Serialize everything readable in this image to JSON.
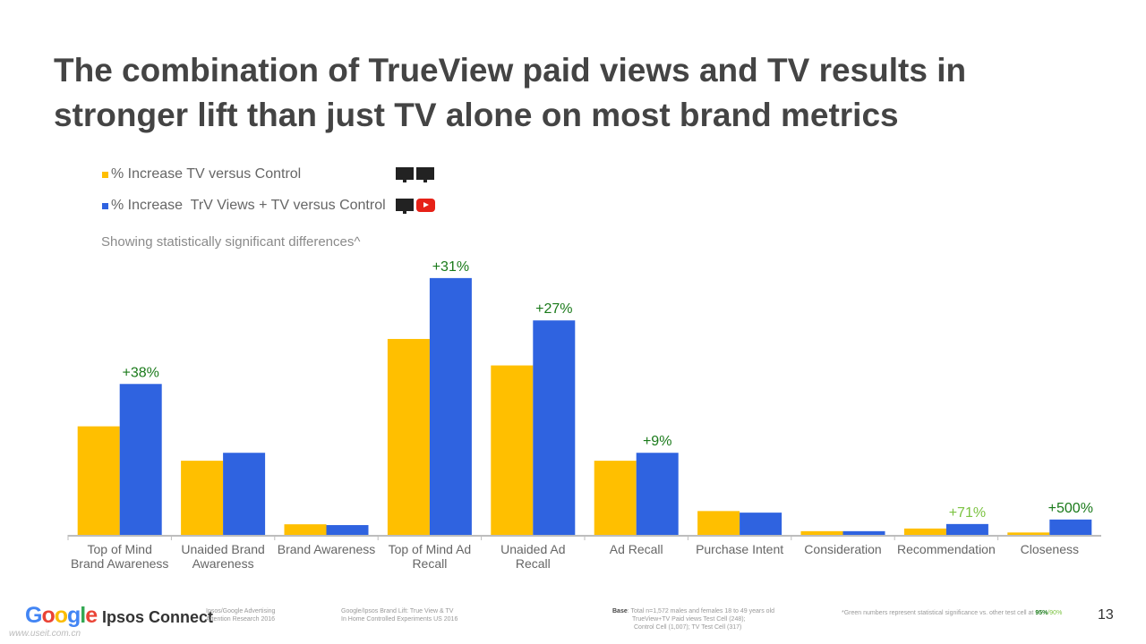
{
  "title": "The combination of TrueView paid views and TV results in stronger lift than just TV alone on most brand metrics",
  "subtitle": "Showing statistically significant differences^",
  "legend": {
    "tv_label": "% Increase TV versus Control",
    "trv_label": "% Increase  TrV Views + TV versus Control",
    "icons": [
      "tv-icon",
      "tv-icon",
      "tv-icon",
      "youtube-icon"
    ]
  },
  "colors": {
    "tv": "#FFBF00",
    "trv": "#2F63E0",
    "label_dark_green": "#1A7A1A",
    "label_light_green": "#7CC342"
  },
  "chart_data": {
    "type": "bar",
    "categories": [
      "Top of Mind Brand Awareness",
      "Unaided Brand Awareness",
      "Brand Awareness",
      "Top of Mind Ad Recall",
      "Unaided Ad Recall",
      "Ad Recall",
      "Purchase Intent",
      "Consideration",
      "Recommendation",
      "Closeness"
    ],
    "category_lines": [
      [
        "Top of Mind",
        "Brand Awareness"
      ],
      [
        "Unaided Brand",
        "Awareness"
      ],
      [
        "Brand Awareness"
      ],
      [
        "Top of Mind Ad",
        "Recall"
      ],
      [
        "Unaided Ad",
        "Recall"
      ],
      [
        "Ad Recall"
      ],
      [
        "Purchase Intent"
      ],
      [
        "Consideration"
      ],
      [
        "Recommendation"
      ],
      [
        "Closeness"
      ]
    ],
    "series": [
      {
        "name": "% Increase TV versus Control",
        "color": "#FFBF00",
        "values": [
          41,
          28,
          4,
          74,
          64,
          28,
          9,
          1.4,
          2.4,
          0.9
        ]
      },
      {
        "name": "% Increase  TrV Views + TV versus Control",
        "color": "#2F63E0",
        "values": [
          57,
          31,
          3.7,
          97,
          81,
          31,
          8.4,
          1.4,
          4.1,
          5.8
        ]
      }
    ],
    "annotations": [
      {
        "category": "Top of Mind Brand Awareness",
        "text": "+38%",
        "style": "dark"
      },
      {
        "category": "Top of Mind Ad Recall",
        "text": "+31%",
        "style": "dark"
      },
      {
        "category": "Unaided Ad Recall",
        "text": "+27%",
        "style": "dark"
      },
      {
        "category": "Ad Recall",
        "text": "+9%",
        "style": "dark"
      },
      {
        "category": "Recommendation",
        "text": "+71%",
        "style": "light"
      },
      {
        "category": "Closeness",
        "text": "+500%",
        "style": "dark"
      }
    ],
    "ylim": [
      0,
      100
    ],
    "grid": false,
    "legend_position": "top-left"
  },
  "footer": {
    "google": "Google",
    "ipsos": "Ipsos Connect",
    "source1": [
      "Ipsos/Google Advertising",
      "Attention Research 2016"
    ],
    "source2": [
      "Google/Ipsos Brand Lift: True View & TV",
      "In Home Controlled Experiments US 2016"
    ],
    "base_label": "Base",
    "base": ": Total n=1,572 males and females 18 to 49 years old",
    "base2": "TrueView+TV Paid views Test Cell (248);",
    "base3": "Control Cell (1,007); TV Test Cell (317)",
    "note_prefix": "*Green numbers represent statistical significance vs. other test cell at ",
    "note_95": "95%",
    "note_90": "/90%",
    "page": "13",
    "watermark": "www.useit.com.cn"
  }
}
